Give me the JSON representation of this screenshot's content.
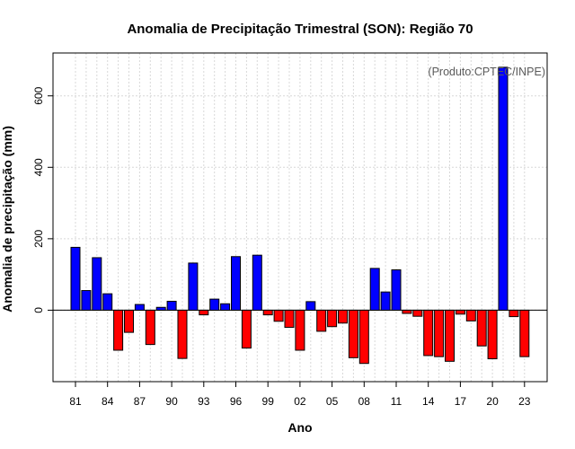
{
  "chart_data": {
    "type": "bar",
    "title": "Anomalia de Precipitação Trimestral (SON): Região 70",
    "credit": "(Produto:CPTEC/INPE)",
    "xlabel": "Ano",
    "ylabel": "Anomalia de precipitação (mm)",
    "ylim": [
      -200,
      720
    ],
    "yticks": [
      0,
      200,
      400,
      600
    ],
    "ytick_labels": [
      "0",
      "200",
      "400",
      "600"
    ],
    "xtick_labels": [
      "81",
      "84",
      "87",
      "90",
      "93",
      "96",
      "99",
      "02",
      "05",
      "08",
      "11",
      "14",
      "17",
      "20",
      "23"
    ],
    "xtick_every": 3,
    "grid": true,
    "positive_color": "#0000ff",
    "negative_color": "#ff0000",
    "categories": [
      "81",
      "82",
      "83",
      "84",
      "85",
      "86",
      "87",
      "88",
      "89",
      "90",
      "91",
      "92",
      "93",
      "94",
      "95",
      "96",
      "97",
      "98",
      "99",
      "00",
      "01",
      "02",
      "03",
      "04",
      "05",
      "06",
      "07",
      "08",
      "09",
      "10",
      "11",
      "12",
      "13",
      "14",
      "15",
      "16",
      "17",
      "18",
      "19",
      "20",
      "21",
      "22",
      "23"
    ],
    "values": [
      176,
      55,
      147,
      46,
      -112,
      -62,
      16,
      -96,
      8,
      25,
      -135,
      132,
      -13,
      31,
      18,
      150,
      -106,
      154,
      -13,
      -31,
      -48,
      -112,
      24,
      -59,
      -46,
      -36,
      -133,
      -149,
      117,
      51,
      113,
      -9,
      -17,
      -127,
      -130,
      -143,
      -11,
      -30,
      -100,
      -136,
      680,
      -18,
      -130
    ]
  }
}
